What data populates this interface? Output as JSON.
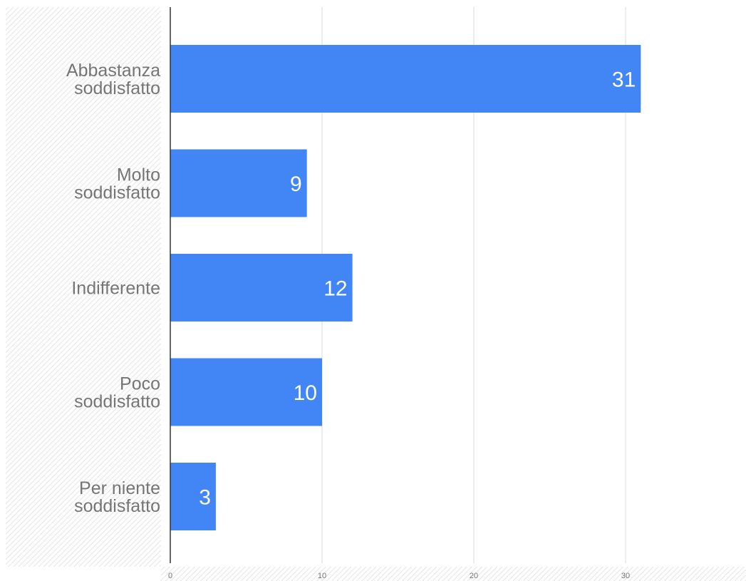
{
  "chart_data": {
    "type": "bar",
    "orientation": "horizontal",
    "categories": [
      [
        "Abbastanza",
        "soddisfatto"
      ],
      [
        "Molto",
        "soddisfatto"
      ],
      [
        "Indifferente"
      ],
      [
        "Poco",
        "soddisfatto"
      ],
      [
        "Per niente",
        "soddisfatto"
      ]
    ],
    "values": [
      31,
      9,
      12,
      10,
      3
    ],
    "xlim": [
      0,
      37
    ],
    "xticks": [
      0,
      10,
      20,
      30
    ],
    "grid": true,
    "legend": "none",
    "colors": {
      "bar": "#4285f4",
      "grid": "#dadada",
      "axis": "#333333",
      "hatch": "#e4e4e4"
    }
  }
}
